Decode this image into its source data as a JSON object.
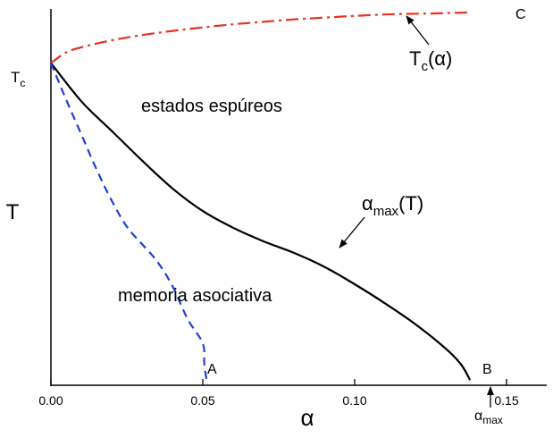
{
  "chart_data": {
    "type": "line",
    "title": "",
    "xlabel": "α",
    "ylabel": "T",
    "xlim": [
      0,
      0.165
    ],
    "ylim": [
      0,
      1.08
    ],
    "x_ticks": [
      {
        "value": 0.0,
        "label": "0.00"
      },
      {
        "value": 0.05,
        "label": "0.05"
      },
      {
        "value": 0.1,
        "label": "0.10"
      },
      {
        "value": 0.15,
        "label": "0.15"
      }
    ],
    "grid": false,
    "series": [
      {
        "label": "Tc(α)",
        "style": "dash-dot",
        "color": "#e8321e",
        "x": [
          0.0,
          0.005,
          0.01,
          0.02,
          0.03,
          0.04,
          0.05,
          0.06,
          0.07,
          0.08,
          0.09,
          0.1,
          0.113,
          0.125,
          0.138
        ],
        "y": [
          0.925,
          0.955,
          0.97,
          0.99,
          1.005,
          1.017,
          1.027,
          1.036,
          1.043,
          1.05,
          1.055,
          1.06,
          1.065,
          1.067,
          1.07
        ]
      },
      {
        "label": "αmax(T)",
        "style": "solid",
        "color": "#000000",
        "x": [
          0.0,
          0.01,
          0.02,
          0.03,
          0.04,
          0.05,
          0.06,
          0.07,
          0.08,
          0.09,
          0.1,
          0.11,
          0.12,
          0.13,
          0.135,
          0.138
        ],
        "y": [
          0.925,
          0.815,
          0.73,
          0.645,
          0.565,
          0.5,
          0.452,
          0.413,
          0.38,
          0.34,
          0.29,
          0.235,
          0.175,
          0.105,
          0.06,
          0.015
        ]
      },
      {
        "label": "",
        "style": "dashed",
        "color": "#1f3fd6",
        "x": [
          0.0,
          0.005,
          0.01,
          0.015,
          0.02,
          0.025,
          0.03,
          0.035,
          0.04,
          0.045,
          0.05,
          0.0505,
          0.0515
        ],
        "y": [
          0.925,
          0.82,
          0.72,
          0.62,
          0.53,
          0.455,
          0.405,
          0.355,
          0.285,
          0.19,
          0.12,
          0.06,
          0.0
        ]
      }
    ],
    "annotations": {
      "tc_axis_label": {
        "main": "T",
        "sub": "c"
      },
      "tc_curve_label": {
        "main": "T",
        "sub": "c",
        "suffix": "(α)"
      },
      "amax_curve_label": {
        "main": "α",
        "sub": "max",
        "suffix": "(T)"
      },
      "amax_axis_label": {
        "main": "α",
        "sub": "max"
      },
      "region_upper": "estados espúreos",
      "region_lower": "memoria asociativa",
      "point_a": "A",
      "point_b": "B",
      "point_c": "C"
    }
  }
}
